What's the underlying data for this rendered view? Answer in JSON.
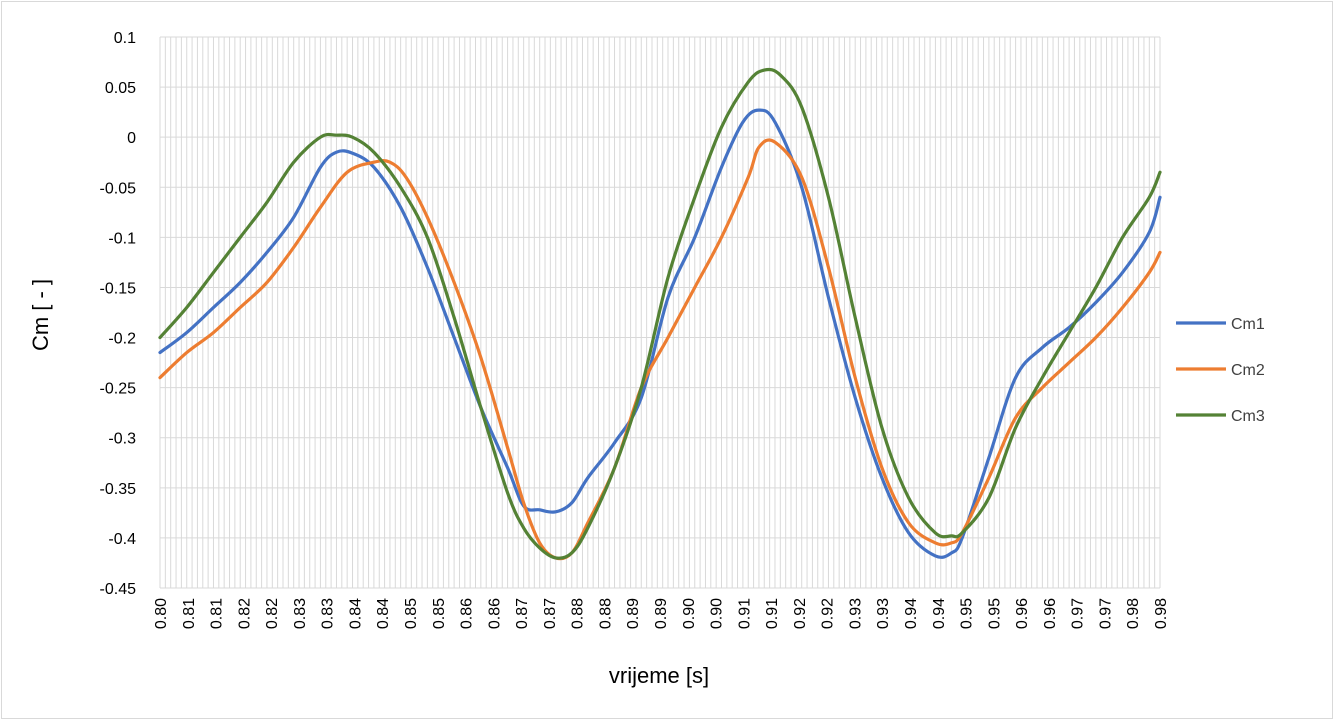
{
  "chart_data": {
    "type": "line",
    "title": "",
    "xlabel": "vrijeme [s]",
    "ylabel": "Cm [ - ]",
    "ylim": [
      -0.45,
      0.1
    ],
    "xlim": [
      0.8,
      0.987
    ],
    "yticks": [
      "0.1",
      "0.05",
      "0",
      "-0.05",
      "-0.1",
      "-0.15",
      "-0.2",
      "-0.25",
      "-0.3",
      "-0.35",
      "-0.4",
      "-0.45"
    ],
    "xtick_labels": [
      "0.80",
      "0.81",
      "0.81",
      "0.82",
      "0.82",
      "0.83",
      "0.83",
      "0.84",
      "0.84",
      "0.85",
      "0.85",
      "0.86",
      "0.86",
      "0.87",
      "0.87",
      "0.88",
      "0.88",
      "0.89",
      "0.89",
      "0.90",
      "0.90",
      "0.91",
      "0.91",
      "0.92",
      "0.92",
      "0.93",
      "0.93",
      "0.94",
      "0.94",
      "0.95",
      "0.95",
      "0.96",
      "0.96",
      "0.97",
      "0.97",
      "0.98",
      "0.98"
    ],
    "grid": true,
    "legend": "right",
    "series": [
      {
        "name": "Cm1",
        "color": "#4472C4",
        "x": [
          0.8,
          0.805,
          0.81,
          0.815,
          0.82,
          0.825,
          0.83,
          0.833,
          0.836,
          0.84,
          0.845,
          0.85,
          0.855,
          0.86,
          0.865,
          0.868,
          0.871,
          0.874,
          0.877,
          0.88,
          0.885,
          0.89,
          0.895,
          0.9,
          0.905,
          0.909,
          0.912,
          0.915,
          0.92,
          0.925,
          0.93,
          0.935,
          0.94,
          0.945,
          0.948,
          0.95,
          0.955,
          0.96,
          0.965,
          0.97,
          0.975,
          0.98,
          0.985,
          0.987
        ],
        "values": [
          -0.215,
          -0.195,
          -0.17,
          -0.145,
          -0.115,
          -0.08,
          -0.03,
          -0.015,
          -0.016,
          -0.03,
          -0.07,
          -0.13,
          -0.2,
          -0.27,
          -0.33,
          -0.368,
          -0.372,
          -0.374,
          -0.365,
          -0.34,
          -0.305,
          -0.26,
          -0.16,
          -0.1,
          -0.03,
          0.015,
          0.027,
          0.015,
          -0.05,
          -0.16,
          -0.26,
          -0.34,
          -0.395,
          -0.418,
          -0.415,
          -0.4,
          -0.32,
          -0.24,
          -0.21,
          -0.19,
          -0.165,
          -0.135,
          -0.095,
          -0.06
        ]
      },
      {
        "name": "Cm2",
        "color": "#ED7D31",
        "x": [
          0.8,
          0.805,
          0.81,
          0.815,
          0.82,
          0.825,
          0.83,
          0.835,
          0.84,
          0.843,
          0.846,
          0.85,
          0.855,
          0.86,
          0.865,
          0.868,
          0.871,
          0.874,
          0.877,
          0.88,
          0.885,
          0.89,
          0.895,
          0.9,
          0.905,
          0.91,
          0.912,
          0.915,
          0.92,
          0.925,
          0.93,
          0.935,
          0.94,
          0.945,
          0.948,
          0.95,
          0.955,
          0.96,
          0.965,
          0.97,
          0.975,
          0.98,
          0.985,
          0.987
        ],
        "values": [
          -0.24,
          -0.215,
          -0.195,
          -0.17,
          -0.145,
          -0.11,
          -0.07,
          -0.035,
          -0.025,
          -0.025,
          -0.04,
          -0.08,
          -0.145,
          -0.22,
          -0.31,
          -0.365,
          -0.405,
          -0.42,
          -0.415,
          -0.385,
          -0.33,
          -0.25,
          -0.2,
          -0.15,
          -0.1,
          -0.04,
          -0.01,
          -0.005,
          -0.04,
          -0.13,
          -0.24,
          -0.33,
          -0.385,
          -0.405,
          -0.405,
          -0.395,
          -0.34,
          -0.28,
          -0.25,
          -0.225,
          -0.2,
          -0.17,
          -0.135,
          -0.115
        ]
      },
      {
        "name": "Cm3",
        "color": "#548235",
        "x": [
          0.8,
          0.805,
          0.81,
          0.815,
          0.82,
          0.825,
          0.83,
          0.833,
          0.836,
          0.84,
          0.845,
          0.85,
          0.855,
          0.86,
          0.865,
          0.868,
          0.871,
          0.874,
          0.877,
          0.88,
          0.885,
          0.89,
          0.895,
          0.9,
          0.905,
          0.91,
          0.913,
          0.916,
          0.92,
          0.925,
          0.93,
          0.935,
          0.94,
          0.945,
          0.948,
          0.95,
          0.955,
          0.96,
          0.965,
          0.97,
          0.975,
          0.98,
          0.985,
          0.987
        ],
        "values": [
          -0.2,
          -0.17,
          -0.135,
          -0.1,
          -0.065,
          -0.025,
          0,
          0.002,
          0,
          -0.015,
          -0.05,
          -0.1,
          -0.18,
          -0.27,
          -0.355,
          -0.39,
          -0.41,
          -0.42,
          -0.415,
          -0.39,
          -0.33,
          -0.25,
          -0.14,
          -0.06,
          0.01,
          0.055,
          0.067,
          0.062,
          0.03,
          -0.06,
          -0.18,
          -0.29,
          -0.36,
          -0.395,
          -0.398,
          -0.395,
          -0.36,
          -0.29,
          -0.24,
          -0.195,
          -0.15,
          -0.1,
          -0.06,
          -0.035
        ]
      }
    ]
  }
}
